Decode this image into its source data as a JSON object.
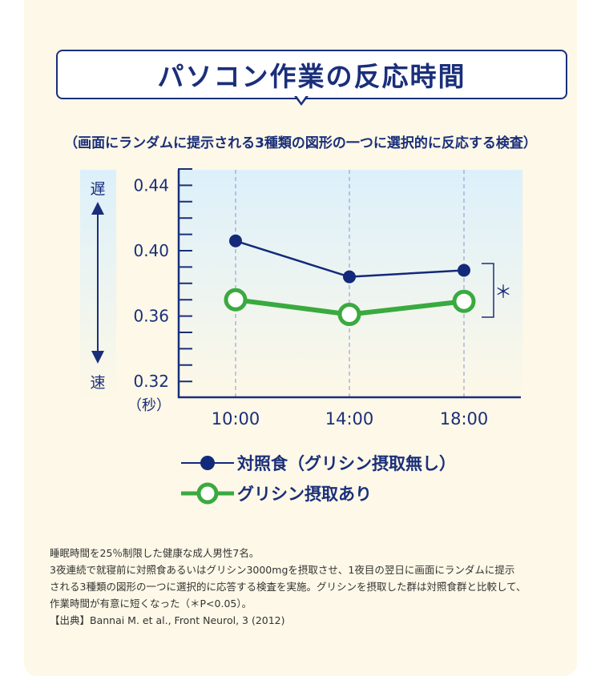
{
  "title": "パソコン作業の反応時間",
  "subtitle": "（画面にランダムに提示される3種類の図形の一つに選択的に反応する検査）",
  "chart_data": {
    "type": "line",
    "categories": [
      "10:00",
      "14:00",
      "18:00"
    ],
    "ylim": [
      0.32,
      0.45
    ],
    "yticks": [
      "0.44",
      "0.40",
      "0.36",
      "0.32"
    ],
    "yunit": "（秒）",
    "y_direction_labels": {
      "up": "遅",
      "down": "速"
    },
    "significance": "＊",
    "grid": "vertical dashed",
    "series": [
      {
        "name": "対照食（グリシン摂取無し）",
        "values": [
          0.406,
          0.384,
          0.388
        ],
        "color": "#13297a",
        "marker": "filled-circle"
      },
      {
        "name": "グリシン摂取あり",
        "values": [
          0.37,
          0.361,
          0.369
        ],
        "color": "#3aaa3f",
        "marker": "open-circle"
      }
    ]
  },
  "notes": [
    "睡眠時間を25％制限した健康な成人男性7名。",
    "3夜連続で就寝前に対照食あるいはグリシン3000mgを摂取させ、1夜目の翌日に画面にランダムに提示",
    "される3種類の図形の一つに選択的に応答する検査を実施。グリシンを摂取した群は対照食群と比較して、",
    "作業時間が有意に短くなった（＊P<0.05）。",
    "【出典】Bannai M. et al., Front Neurol, 3 (2012)"
  ]
}
